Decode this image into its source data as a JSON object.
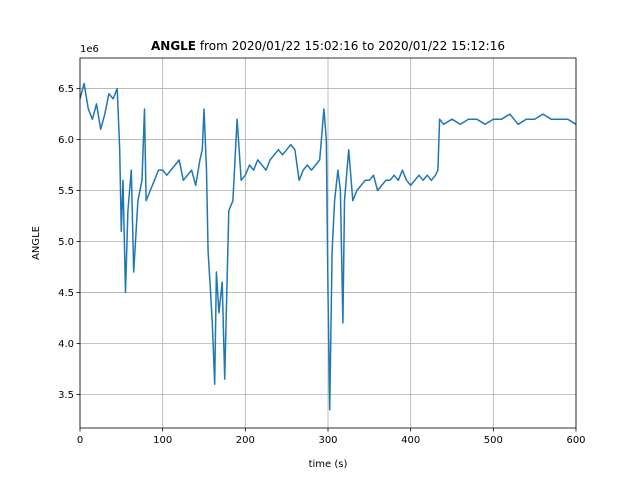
{
  "chart_data": {
    "type": "line",
    "title_bold": "ANGLE",
    "title_rest": " from 2020/01/22 15:02:16 to 2020/01/22 15:12:16",
    "xlabel": "time (s)",
    "ylabel": "ANGLE",
    "offset_text": "1e6",
    "xlim": [
      0,
      600
    ],
    "ylim": [
      3.17,
      6.8
    ],
    "xticks": [
      0,
      100,
      200,
      300,
      400,
      500,
      600
    ],
    "xtick_labels": [
      "0",
      "100",
      "200",
      "300",
      "400",
      "500",
      "600"
    ],
    "yticks": [
      3.5,
      4.0,
      4.5,
      5.0,
      5.5,
      6.0,
      6.5
    ],
    "ytick_labels": [
      "3.5",
      "4.0",
      "4.5",
      "5.0",
      "5.5",
      "6.0",
      "6.5"
    ],
    "grid": true,
    "line_color": "#1f77b4",
    "series": [
      {
        "x": [
          0,
          5,
          10,
          15,
          20,
          25,
          30,
          35,
          40,
          45,
          48,
          50,
          52,
          55,
          58,
          62,
          65,
          70,
          75,
          78,
          80,
          85,
          90,
          95,
          100,
          105,
          110,
          115,
          120,
          125,
          130,
          135,
          140,
          145,
          148,
          150,
          153,
          155,
          158,
          160,
          163,
          165,
          168,
          172,
          175,
          180,
          185,
          190,
          195,
          200,
          205,
          210,
          215,
          220,
          225,
          230,
          235,
          240,
          245,
          250,
          255,
          260,
          265,
          270,
          275,
          280,
          285,
          290,
          295,
          298,
          300,
          302,
          305,
          308,
          312,
          315,
          318,
          320,
          325,
          330,
          335,
          340,
          345,
          350,
          355,
          360,
          365,
          370,
          375,
          380,
          385,
          390,
          395,
          400,
          405,
          410,
          415,
          420,
          425,
          430,
          433,
          435,
          440,
          450,
          460,
          470,
          480,
          490,
          500,
          510,
          520,
          530,
          540,
          550,
          560,
          570,
          580,
          590,
          600
        ],
        "y": [
          6.4,
          6.55,
          6.3,
          6.2,
          6.35,
          6.1,
          6.25,
          6.45,
          6.4,
          6.5,
          5.9,
          5.1,
          5.6,
          4.5,
          5.3,
          5.7,
          4.7,
          5.4,
          5.6,
          6.3,
          5.4,
          5.5,
          5.6,
          5.7,
          5.7,
          5.65,
          5.7,
          5.75,
          5.8,
          5.6,
          5.65,
          5.7,
          5.55,
          5.8,
          5.9,
          6.3,
          5.7,
          4.9,
          4.5,
          4.2,
          3.6,
          4.7,
          4.3,
          4.6,
          3.65,
          5.3,
          5.4,
          6.2,
          5.6,
          5.65,
          5.75,
          5.7,
          5.8,
          5.75,
          5.7,
          5.8,
          5.85,
          5.9,
          5.85,
          5.9,
          5.95,
          5.9,
          5.6,
          5.7,
          5.75,
          5.7,
          5.75,
          5.8,
          6.3,
          6.0,
          4.5,
          3.35,
          4.9,
          5.4,
          5.7,
          5.5,
          4.2,
          5.4,
          5.9,
          5.4,
          5.5,
          5.55,
          5.6,
          5.6,
          5.65,
          5.5,
          5.55,
          5.6,
          5.6,
          5.65,
          5.6,
          5.7,
          5.6,
          5.55,
          5.6,
          5.65,
          5.6,
          5.65,
          5.6,
          5.65,
          5.7,
          6.2,
          6.15,
          6.2,
          6.15,
          6.2,
          6.2,
          6.15,
          6.2,
          6.2,
          6.25,
          6.15,
          6.2,
          6.2,
          6.25,
          6.2,
          6.2,
          6.2,
          6.15
        ]
      }
    ]
  }
}
